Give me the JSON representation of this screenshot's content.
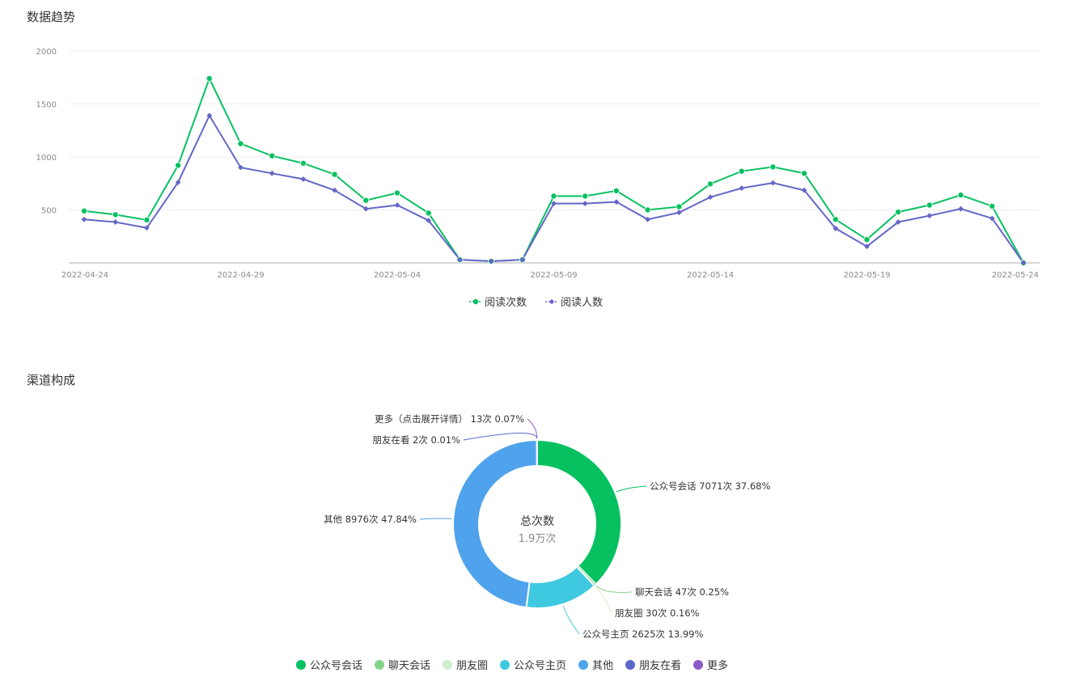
{
  "sections": {
    "trend_title": "数据趋势",
    "channel_title": "渠道构成"
  },
  "chart_data": [
    {
      "type": "line",
      "y_ticks": [
        2000,
        1500,
        1000,
        500
      ],
      "ylim": [
        0,
        2000
      ],
      "x_tick_labels": [
        "2022-04-24",
        "2022-04-29",
        "2022-05-04",
        "2022-05-09",
        "2022-05-14",
        "2022-05-19",
        "2022-05-24"
      ],
      "x_tick_indices": [
        0,
        5,
        10,
        15,
        20,
        25,
        30
      ],
      "grid": true,
      "legend_position": "bottom",
      "series": [
        {
          "name": "阅读次数",
          "color": "#07c160",
          "marker": "circle",
          "values": [
            490,
            455,
            405,
            920,
            1740,
            1125,
            1010,
            940,
            835,
            590,
            660,
            470,
            30,
            15,
            30,
            630,
            630,
            680,
            500,
            530,
            745,
            865,
            905,
            845,
            410,
            220,
            480,
            545,
            640,
            535,
            0
          ]
        },
        {
          "name": "阅读人数",
          "color": "#6467c7",
          "marker": "diamond",
          "values": [
            410,
            385,
            330,
            760,
            1390,
            900,
            845,
            790,
            685,
            510,
            545,
            400,
            30,
            15,
            30,
            560,
            560,
            575,
            410,
            475,
            620,
            705,
            755,
            685,
            325,
            155,
            385,
            445,
            510,
            420,
            0
          ]
        }
      ]
    },
    {
      "type": "pie",
      "donut": true,
      "center_title": "总次数",
      "center_value": "1.9万次",
      "legend_position": "bottom",
      "slices": [
        {
          "name": "公众号会话",
          "label": "公众号会话 7071次 37.68%",
          "value": 7071,
          "percent": 37.68,
          "color": "#07c160"
        },
        {
          "name": "聊天会话",
          "label": "聊天会话 47次 0.25%",
          "value": 47,
          "percent": 0.25,
          "color": "#86d38a"
        },
        {
          "name": "朋友圈",
          "label": "朋友圈 30次 0.16%",
          "value": 30,
          "percent": 0.16,
          "color": "#cfedcf"
        },
        {
          "name": "公众号主页",
          "label": "公众号主页 2625次 13.99%",
          "value": 2625,
          "percent": 13.99,
          "color": "#3ec9e0"
        },
        {
          "name": "其他",
          "label": "其他 8976次 47.84%",
          "value": 8976,
          "percent": 47.84,
          "color": "#4ea3ec"
        },
        {
          "name": "朋友在看",
          "label": "朋友在看 2次 0.01%",
          "value": 2,
          "percent": 0.01,
          "color": "#5b67cc"
        },
        {
          "name": "更多",
          "label": "更多（点击展开详情） 13次 0.07%",
          "value": 13,
          "percent": 0.07,
          "color": "#8e5ac8"
        }
      ]
    }
  ]
}
